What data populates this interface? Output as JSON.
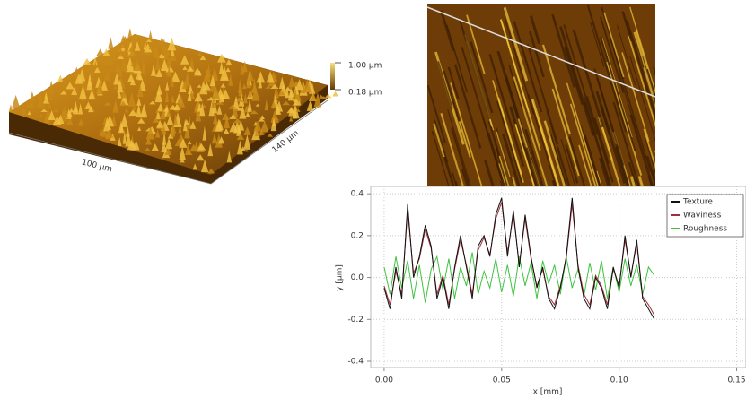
{
  "surface_3d": {
    "z_labels": [
      "1.00 µm",
      "0.18 µm"
    ],
    "x_label": "100 µm",
    "y_label": "140 µm"
  },
  "chart_data": {
    "type": "line",
    "xlabel": "x [mm]",
    "ylabel": "y [µm]",
    "x": [
      0,
      0.0025,
      0.005,
      0.0075,
      0.01,
      0.0125,
      0.015,
      0.0175,
      0.02,
      0.0225,
      0.025,
      0.0275,
      0.03,
      0.0325,
      0.035,
      0.0375,
      0.04,
      0.0425,
      0.045,
      0.0475,
      0.05,
      0.0525,
      0.055,
      0.0575,
      0.06,
      0.0625,
      0.065,
      0.0675,
      0.07,
      0.0725,
      0.075,
      0.0775,
      0.08,
      0.0825,
      0.085,
      0.0875,
      0.09,
      0.0925,
      0.095,
      0.0975,
      0.1,
      0.1025,
      0.105,
      0.1075,
      0.11,
      0.1125,
      0.115
    ],
    "series": [
      {
        "name": "Texture",
        "color": "#111111",
        "values": [
          -0.05,
          -0.15,
          0.05,
          -0.1,
          0.35,
          0,
          0.1,
          0.25,
          0.15,
          -0.1,
          0,
          -0.15,
          0.05,
          0.2,
          0.05,
          -0.1,
          0.15,
          0.2,
          0.1,
          0.3,
          0.38,
          0.1,
          0.32,
          0.05,
          0.3,
          0.1,
          -0.05,
          0.05,
          -0.1,
          -0.15,
          -0.05,
          0.1,
          0.38,
          0.05,
          -0.1,
          -0.15,
          0,
          -0.05,
          -0.15,
          0.05,
          -0.05,
          0.2,
          0,
          0.18,
          -0.1,
          -0.15,
          -0.2
        ]
      },
      {
        "name": "Waviness",
        "color": "#a0303a",
        "values": [
          -0.04,
          -0.13,
          0.03,
          -0.08,
          0.32,
          0.02,
          0.09,
          0.23,
          0.14,
          -0.08,
          0.01,
          -0.13,
          0.04,
          0.18,
          0.06,
          -0.08,
          0.13,
          0.19,
          0.11,
          0.28,
          0.36,
          0.12,
          0.3,
          0.06,
          0.28,
          0.09,
          -0.04,
          0.04,
          -0.09,
          -0.13,
          -0.04,
          0.09,
          0.35,
          0.06,
          -0.08,
          -0.13,
          0.01,
          -0.04,
          -0.13,
          0.04,
          -0.04,
          0.18,
          0.01,
          0.16,
          -0.09,
          -0.13,
          -0.18
        ]
      },
      {
        "name": "Roughness",
        "color": "#3cc43c",
        "values": [
          0.05,
          -0.08,
          0.1,
          -0.05,
          0.08,
          -0.1,
          0.06,
          -0.12,
          0.04,
          0.1,
          -0.06,
          0.09,
          -0.1,
          0.05,
          -0.04,
          0.12,
          -0.08,
          0.03,
          -0.05,
          0.09,
          -0.07,
          0.06,
          -0.09,
          0.1,
          -0.04,
          0.07,
          -0.1,
          0.08,
          -0.03,
          0.06,
          -0.08,
          0.1,
          -0.05,
          0.04,
          -0.09,
          0.07,
          -0.06,
          0.08,
          -0.1,
          0.05,
          -0.07,
          0.09,
          -0.04,
          0.06,
          -0.08,
          0.05,
          0.01
        ]
      }
    ],
    "xlim": [
      -0.0057,
      0.154
    ],
    "ylim": [
      -0.43,
      0.435
    ],
    "xticks": [
      {
        "value": 0,
        "label": "0.00"
      },
      0.05,
      {
        "value": 0.1,
        "label": "0.10"
      },
      {
        "value": 0.15,
        "label": "0.15"
      }
    ],
    "yticks": [
      -0.4,
      -0.2,
      {
        "value": 0,
        "label": "0.0"
      },
      0.2,
      0.4
    ],
    "grid": true,
    "legend": "upper right"
  }
}
